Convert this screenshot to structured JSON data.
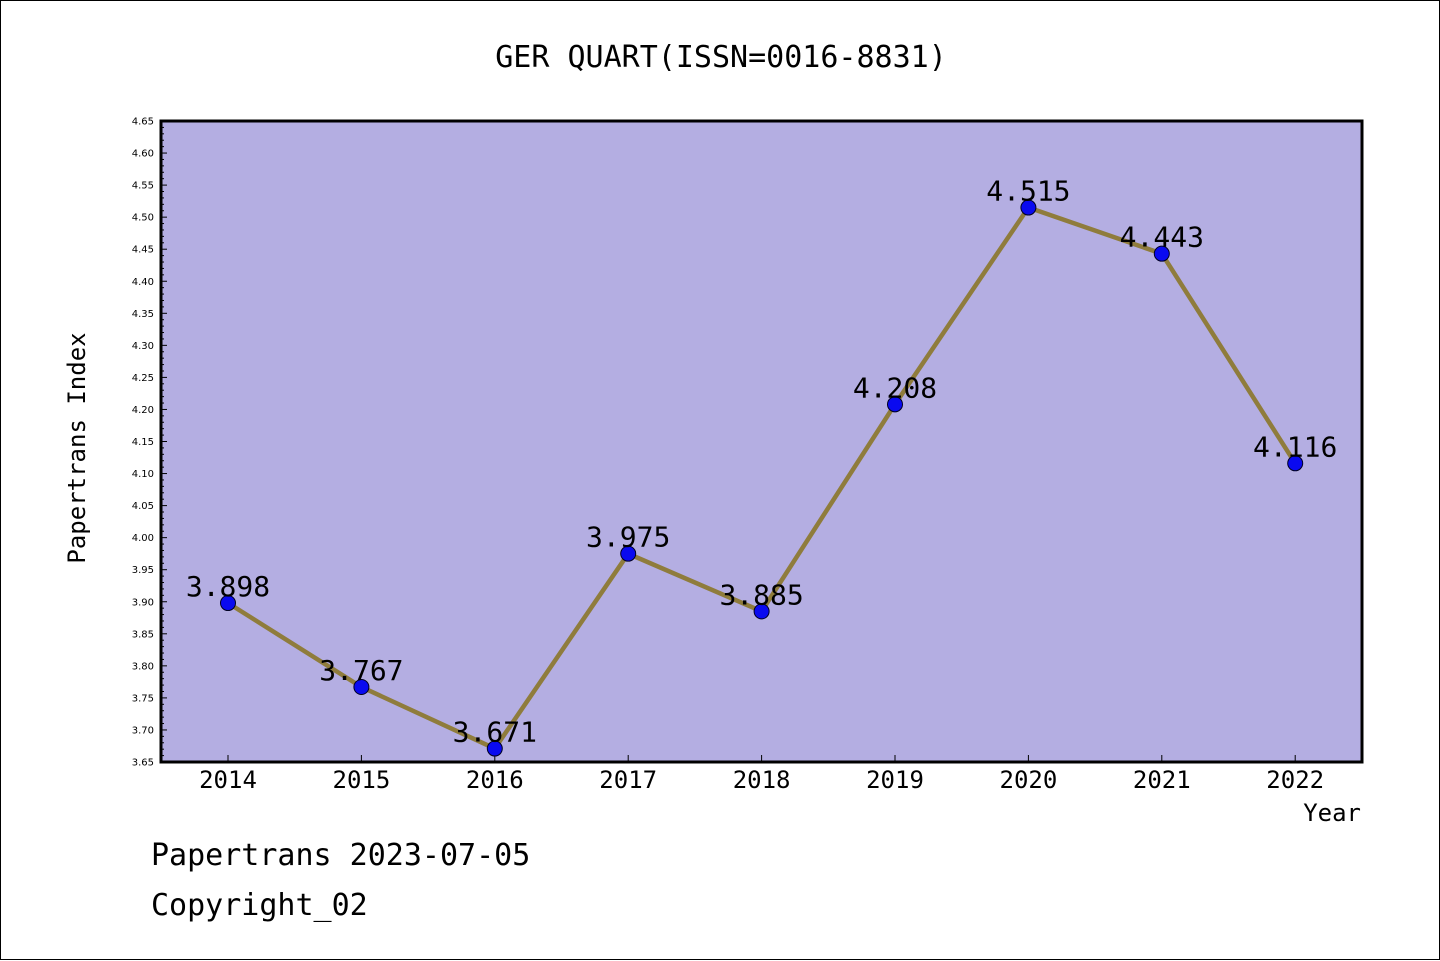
{
  "colors": {
    "plot_background": "#b4aee2",
    "line": "#8f7c3c",
    "marker": "#0a0af0"
  },
  "chart_data": {
    "type": "line",
    "title": "GER QUART(ISSN=0016-8831)",
    "xlabel": "Year",
    "ylabel": "Papertrans Index",
    "categories": [
      "2014",
      "2015",
      "2016",
      "2017",
      "2018",
      "2019",
      "2020",
      "2021",
      "2022"
    ],
    "series": [
      {
        "values": [
          3.898,
          3.767,
          3.671,
          3.975,
          3.885,
          4.208,
          4.515,
          4.443,
          4.116
        ],
        "labels": [
          "3.898",
          "3.767",
          "3.671",
          "3.975",
          "3.885",
          "4.208",
          "4.515",
          "4.443",
          "4.116"
        ]
      }
    ],
    "ylim": [
      3.65,
      4.65
    ],
    "yticks": [
      "3.65",
      "3.70",
      "3.75",
      "3.80",
      "3.85",
      "3.90",
      "3.95",
      "4.00",
      "4.05",
      "4.10",
      "4.15",
      "4.20",
      "4.25",
      "4.30",
      "4.35",
      "4.40",
      "4.45",
      "4.50",
      "4.55",
      "4.60",
      "4.65"
    ],
    "grid": false,
    "legend": "none"
  },
  "footer": {
    "line1": "Papertrans 2023-07-05",
    "line2": "Copyright_02"
  }
}
